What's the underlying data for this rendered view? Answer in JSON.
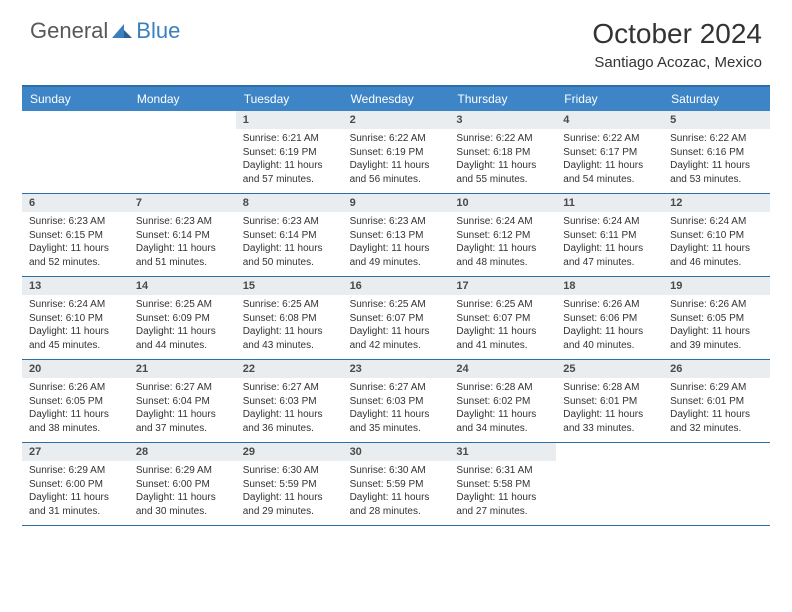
{
  "logo": {
    "word1": "General",
    "word2": "Blue"
  },
  "title": "October 2024",
  "location": "Santiago Acozac, Mexico",
  "colors": {
    "header_bar": "#3d85c6",
    "header_text": "#ffffff",
    "rule": "#2b6fa8",
    "daynum_bg": "#e9edef",
    "body_text": "#333333",
    "logo_gray": "#585858",
    "logo_blue": "#3b7fbf"
  },
  "dayNames": [
    "Sunday",
    "Monday",
    "Tuesday",
    "Wednesday",
    "Thursday",
    "Friday",
    "Saturday"
  ],
  "weeks": [
    [
      null,
      null,
      {
        "n": "1",
        "sr": "6:21 AM",
        "ss": "6:19 PM",
        "dl": "11 hours and 57 minutes."
      },
      {
        "n": "2",
        "sr": "6:22 AM",
        "ss": "6:19 PM",
        "dl": "11 hours and 56 minutes."
      },
      {
        "n": "3",
        "sr": "6:22 AM",
        "ss": "6:18 PM",
        "dl": "11 hours and 55 minutes."
      },
      {
        "n": "4",
        "sr": "6:22 AM",
        "ss": "6:17 PM",
        "dl": "11 hours and 54 minutes."
      },
      {
        "n": "5",
        "sr": "6:22 AM",
        "ss": "6:16 PM",
        "dl": "11 hours and 53 minutes."
      }
    ],
    [
      {
        "n": "6",
        "sr": "6:23 AM",
        "ss": "6:15 PM",
        "dl": "11 hours and 52 minutes."
      },
      {
        "n": "7",
        "sr": "6:23 AM",
        "ss": "6:14 PM",
        "dl": "11 hours and 51 minutes."
      },
      {
        "n": "8",
        "sr": "6:23 AM",
        "ss": "6:14 PM",
        "dl": "11 hours and 50 minutes."
      },
      {
        "n": "9",
        "sr": "6:23 AM",
        "ss": "6:13 PM",
        "dl": "11 hours and 49 minutes."
      },
      {
        "n": "10",
        "sr": "6:24 AM",
        "ss": "6:12 PM",
        "dl": "11 hours and 48 minutes."
      },
      {
        "n": "11",
        "sr": "6:24 AM",
        "ss": "6:11 PM",
        "dl": "11 hours and 47 minutes."
      },
      {
        "n": "12",
        "sr": "6:24 AM",
        "ss": "6:10 PM",
        "dl": "11 hours and 46 minutes."
      }
    ],
    [
      {
        "n": "13",
        "sr": "6:24 AM",
        "ss": "6:10 PM",
        "dl": "11 hours and 45 minutes."
      },
      {
        "n": "14",
        "sr": "6:25 AM",
        "ss": "6:09 PM",
        "dl": "11 hours and 44 minutes."
      },
      {
        "n": "15",
        "sr": "6:25 AM",
        "ss": "6:08 PM",
        "dl": "11 hours and 43 minutes."
      },
      {
        "n": "16",
        "sr": "6:25 AM",
        "ss": "6:07 PM",
        "dl": "11 hours and 42 minutes."
      },
      {
        "n": "17",
        "sr": "6:25 AM",
        "ss": "6:07 PM",
        "dl": "11 hours and 41 minutes."
      },
      {
        "n": "18",
        "sr": "6:26 AM",
        "ss": "6:06 PM",
        "dl": "11 hours and 40 minutes."
      },
      {
        "n": "19",
        "sr": "6:26 AM",
        "ss": "6:05 PM",
        "dl": "11 hours and 39 minutes."
      }
    ],
    [
      {
        "n": "20",
        "sr": "6:26 AM",
        "ss": "6:05 PM",
        "dl": "11 hours and 38 minutes."
      },
      {
        "n": "21",
        "sr": "6:27 AM",
        "ss": "6:04 PM",
        "dl": "11 hours and 37 minutes."
      },
      {
        "n": "22",
        "sr": "6:27 AM",
        "ss": "6:03 PM",
        "dl": "11 hours and 36 minutes."
      },
      {
        "n": "23",
        "sr": "6:27 AM",
        "ss": "6:03 PM",
        "dl": "11 hours and 35 minutes."
      },
      {
        "n": "24",
        "sr": "6:28 AM",
        "ss": "6:02 PM",
        "dl": "11 hours and 34 minutes."
      },
      {
        "n": "25",
        "sr": "6:28 AM",
        "ss": "6:01 PM",
        "dl": "11 hours and 33 minutes."
      },
      {
        "n": "26",
        "sr": "6:29 AM",
        "ss": "6:01 PM",
        "dl": "11 hours and 32 minutes."
      }
    ],
    [
      {
        "n": "27",
        "sr": "6:29 AM",
        "ss": "6:00 PM",
        "dl": "11 hours and 31 minutes."
      },
      {
        "n": "28",
        "sr": "6:29 AM",
        "ss": "6:00 PM",
        "dl": "11 hours and 30 minutes."
      },
      {
        "n": "29",
        "sr": "6:30 AM",
        "ss": "5:59 PM",
        "dl": "11 hours and 29 minutes."
      },
      {
        "n": "30",
        "sr": "6:30 AM",
        "ss": "5:59 PM",
        "dl": "11 hours and 28 minutes."
      },
      {
        "n": "31",
        "sr": "6:31 AM",
        "ss": "5:58 PM",
        "dl": "11 hours and 27 minutes."
      },
      null,
      null
    ]
  ],
  "labels": {
    "sunrise": "Sunrise:",
    "sunset": "Sunset:",
    "daylight": "Daylight:"
  }
}
